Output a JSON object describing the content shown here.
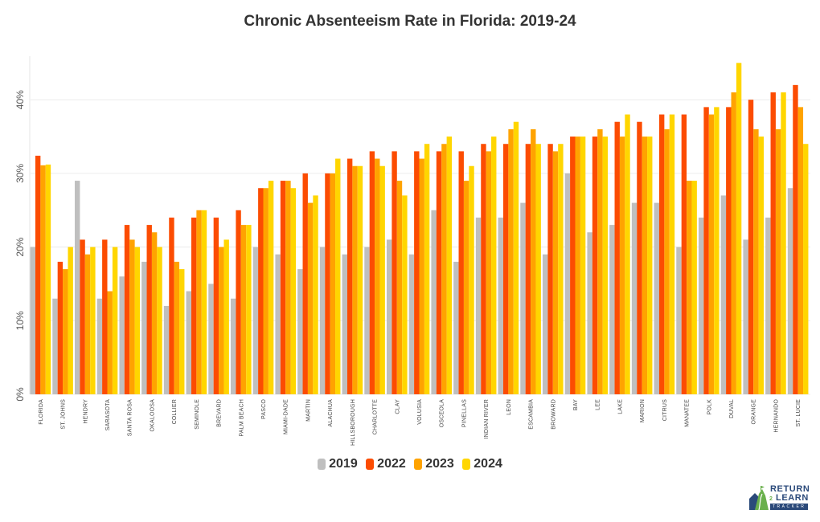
{
  "chart_data": {
    "type": "bar",
    "title": "Chronic Absenteeism Rate in Florida: 2019-24",
    "xlabel": "",
    "ylabel": "",
    "ylim": [
      0,
      45
    ],
    "yticks": [
      0,
      10,
      20,
      30,
      40
    ],
    "ytick_labels": [
      "0%",
      "10%",
      "20%",
      "30%",
      "40%"
    ],
    "grid": true,
    "legend_position": "bottom-center",
    "categories": [
      "FLORIDA",
      "ST. JOHNS",
      "HENDRY",
      "SARASOTA",
      "SANTA ROSA",
      "OKALOOSA",
      "COLLIER",
      "SEMINOLE",
      "BREVARD",
      "PALM BEACH",
      "PASCO",
      "MIAMI-DADE",
      "MARTIN",
      "ALACHUA",
      "HILLSBOROUGH",
      "CHARLOTTE",
      "CLAY",
      "VOLUSIA",
      "OSCEOLA",
      "PINELLAS",
      "INDIAN RIVER",
      "LEON",
      "ESCAMBIA",
      "BROWARD",
      "BAY",
      "LEE",
      "LAKE",
      "MARION",
      "CITRUS",
      "MANATEE",
      "POLK",
      "DUVAL",
      "ORANGE",
      "HERNANDO",
      "ST. LUCIE"
    ],
    "series": [
      {
        "name": "2019",
        "color": "#bfbfbf",
        "values": [
          20,
          13,
          29,
          13,
          16,
          18,
          12,
          14,
          15,
          13,
          20,
          19,
          17,
          20,
          19,
          20,
          21,
          19,
          25,
          18,
          24,
          24,
          26,
          19,
          30,
          22,
          23,
          26,
          26,
          20,
          24,
          27,
          21,
          24,
          28
        ]
      },
      {
        "name": "2022",
        "color": "#fc4c02",
        "values": [
          32.4,
          18,
          21,
          21,
          23,
          23,
          24,
          24,
          24,
          25,
          28,
          29,
          30,
          30,
          32,
          33,
          33,
          33,
          33,
          33,
          34,
          34,
          34,
          34,
          35,
          35,
          37,
          37,
          38,
          38,
          39,
          39,
          40,
          41,
          42
        ]
      },
      {
        "name": "2023",
        "color": "#ffa300",
        "values": [
          31.1,
          17,
          19,
          14,
          21,
          22,
          18,
          25,
          20,
          23,
          28,
          29,
          26,
          30,
          31,
          32,
          29,
          32,
          34,
          29,
          33,
          36,
          36,
          33,
          35,
          36,
          35,
          35,
          36,
          29,
          38,
          41,
          36,
          36,
          39
        ]
      },
      {
        "name": "2024",
        "color": "#ffd600",
        "values": [
          31.2,
          20,
          20,
          20,
          20,
          20,
          17,
          25,
          21,
          23,
          29,
          28,
          27,
          32,
          31,
          31,
          27,
          34,
          35,
          31,
          35,
          37,
          34,
          34,
          35,
          35,
          38,
          35,
          38,
          29,
          39,
          45,
          35,
          41,
          34
        ]
      }
    ]
  },
  "legend": {
    "items": [
      {
        "label": "2019",
        "color": "#bfbfbf"
      },
      {
        "label": "2022",
        "color": "#fc4c02"
      },
      {
        "label": "2023",
        "color": "#ffa300"
      },
      {
        "label": "2024",
        "color": "#ffd600"
      }
    ]
  },
  "logo": {
    "line1": "RETURN",
    "connector": "2",
    "line2": "LEARN",
    "line3": "TRACKER"
  }
}
